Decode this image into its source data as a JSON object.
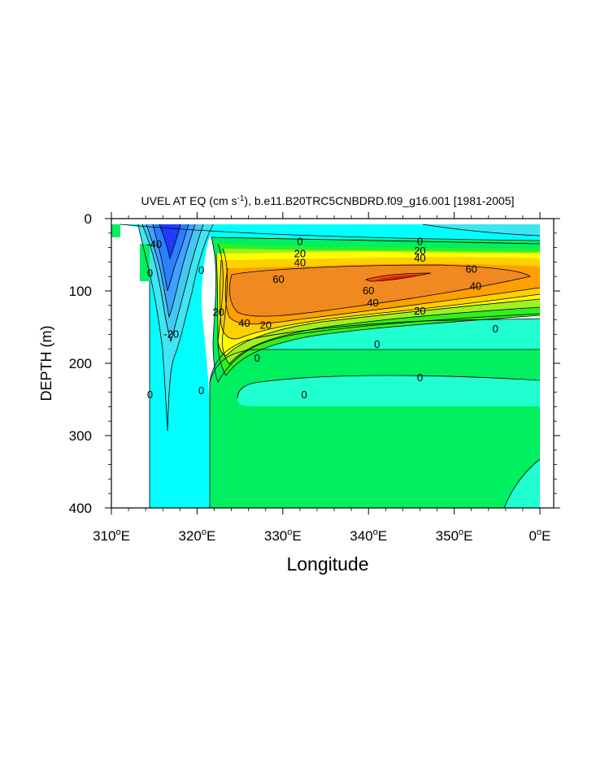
{
  "chart_data": {
    "type": "contour",
    "title": "UVEL AT EQ (cm s-1), b.e11.B20TRC5CNBDRD.f09_g16.001 [1981-2005]",
    "title_parts": {
      "before_sup": "UVEL AT EQ (cm s",
      "sup": "-1",
      "after_sup": "), b.e11.B20TRC5CNBDRD.f09_g16.001 [1981-2005]"
    },
    "xlabel": "Longitude",
    "ylabel": "DEPTH (m)",
    "xlim": [
      310,
      360
    ],
    "ylim": [
      400,
      0
    ],
    "y_reversed": true,
    "x_ticks": [
      {
        "value": 310,
        "num": "310",
        "sup": "o",
        "suffix": "E"
      },
      {
        "value": 320,
        "num": "320",
        "sup": "o",
        "suffix": "E"
      },
      {
        "value": 330,
        "num": "330",
        "sup": "o",
        "suffix": "E"
      },
      {
        "value": 340,
        "num": "340",
        "sup": "o",
        "suffix": "E"
      },
      {
        "value": 350,
        "num": "350",
        "sup": "o",
        "suffix": "E"
      },
      {
        "value": 360,
        "num": "0",
        "sup": "o",
        "suffix": "E"
      }
    ],
    "y_ticks": [
      {
        "value": 0,
        "label": "0"
      },
      {
        "value": 100,
        "label": "100"
      },
      {
        "value": 200,
        "label": "200"
      },
      {
        "value": 300,
        "label": "300"
      },
      {
        "value": 400,
        "label": "400"
      }
    ],
    "fill_colors": {
      "land": "#ffffff",
      "neg_strong": "#1e3cff",
      "neg_40": "#2a7fff",
      "neg_30": "#40a0ff",
      "neg_20": "#44c8f0",
      "neg_10": "#3fe6f2",
      "neg_0": "#00ffff",
      "cyan_light": "#20e6e6",
      "zero_band": "#20ffd0",
      "pos_0": "#00f060",
      "pos_10": "#30f020",
      "pos_20": "#a0f020",
      "pos_30": "#ffff00",
      "pos_40": "#ffd000",
      "pos_50": "#ffa000",
      "pos_60": "#f08a20",
      "pos_70": "#ff5000",
      "max": "#e02010"
    },
    "contour_labels": [
      {
        "text": "0",
        "lon": 332.0,
        "depth": 32
      },
      {
        "text": "20",
        "lon": 332.0,
        "depth": 49
      },
      {
        "text": "40",
        "lon": 332.0,
        "depth": 61
      },
      {
        "text": "60",
        "lon": 329.5,
        "depth": 84
      },
      {
        "text": "60",
        "lon": 340.0,
        "depth": 100
      },
      {
        "text": "40",
        "lon": 340.5,
        "depth": 117
      },
      {
        "text": "20",
        "lon": 328.0,
        "depth": 148
      },
      {
        "text": "40",
        "lon": 325.5,
        "depth": 145
      },
      {
        "text": "20",
        "lon": 322.5,
        "depth": 130
      },
      {
        "text": "20",
        "lon": 346.0,
        "depth": 128
      },
      {
        "text": "0",
        "lon": 346.0,
        "depth": 32
      },
      {
        "text": "20",
        "lon": 346.0,
        "depth": 45
      },
      {
        "text": "40",
        "lon": 346.0,
        "depth": 55
      },
      {
        "text": "60",
        "lon": 352.0,
        "depth": 70
      },
      {
        "text": "40",
        "lon": 352.5,
        "depth": 94
      },
      {
        "text": "0",
        "lon": 354.8,
        "depth": 153
      },
      {
        "text": "0",
        "lon": 341.0,
        "depth": 174
      },
      {
        "text": "0",
        "lon": 327.0,
        "depth": 193
      },
      {
        "text": "0",
        "lon": 346.0,
        "depth": 220
      },
      {
        "text": "0",
        "lon": 332.5,
        "depth": 244
      },
      {
        "text": "-20",
        "lon": 317.0,
        "depth": 160
      },
      {
        "text": "-40",
        "lon": 315.0,
        "depth": 36
      },
      {
        "text": "0",
        "lon": 314.5,
        "depth": 76
      },
      {
        "text": "0",
        "lon": 320.5,
        "depth": 72
      },
      {
        "text": "0",
        "lon": 314.5,
        "depth": 244
      },
      {
        "text": "0",
        "lon": 320.5,
        "depth": 238
      }
    ]
  }
}
